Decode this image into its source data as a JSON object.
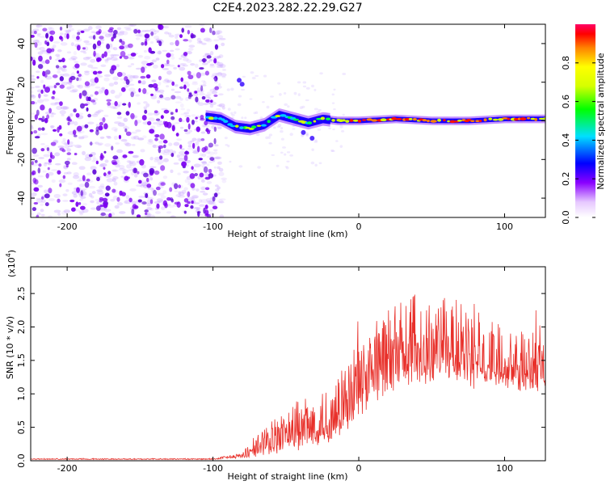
{
  "title": "C2E4.2023.282.22.29.G27",
  "chart_data": [
    {
      "type": "heatmap",
      "xlabel": "Height of straight line (km)",
      "ylabel": "Frequency (Hz)",
      "xlim": [
        -225,
        128
      ],
      "ylim": [
        -50,
        50
      ],
      "x_ticks": [
        -200,
        -100,
        0,
        100
      ],
      "y_ticks": [
        -40,
        -20,
        0,
        20,
        40
      ],
      "noise_region_x": [
        -225,
        -100
      ],
      "signal_line": {
        "x": [
          -105,
          -95,
          -85,
          -75,
          -65,
          -55,
          -45,
          -35,
          -25,
          -15,
          0,
          25,
          50,
          75,
          100,
          128
        ],
        "frequency_hz": [
          2,
          1,
          -3,
          -4,
          -2,
          3,
          1,
          -1,
          1,
          0,
          0,
          1,
          0,
          0,
          1,
          1
        ]
      },
      "colorbar": {
        "label": "Normalized spectral amplitude",
        "range": [
          0.0,
          1.0
        ],
        "ticks": [
          "0.0",
          "0.2",
          "0.4",
          "0.6",
          "0.8"
        ]
      }
    },
    {
      "type": "line",
      "xlabel": "Height of straight line (km)",
      "ylabel": "SNR (10 * v/v)",
      "y_multiplier_label": "(x10",
      "y_multiplier_exp": "4",
      "xlim": [
        -225,
        128
      ],
      "ylim": [
        0,
        2.9
      ],
      "x_ticks": [
        -200,
        -100,
        0,
        100
      ],
      "y_ticks": [
        "0.0",
        "0.5",
        "1.0",
        "1.5",
        "2.0",
        "2.5"
      ],
      "color": "#e8302a",
      "envelope": {
        "x": [
          -225,
          -100,
          -80,
          -60,
          -40,
          -20,
          -10,
          0,
          10,
          20,
          40,
          60,
          80,
          100,
          128
        ],
        "baseline": [
          0.02,
          0.02,
          0.05,
          0.15,
          0.25,
          0.35,
          0.5,
          0.8,
          1.0,
          1.1,
          1.3,
          1.3,
          1.2,
          1.2,
          1.1
        ],
        "amplitude": [
          0.01,
          0.01,
          0.05,
          0.35,
          0.5,
          0.55,
          0.7,
          0.8,
          0.7,
          0.8,
          0.9,
          0.8,
          0.7,
          0.6,
          0.6
        ]
      }
    }
  ]
}
